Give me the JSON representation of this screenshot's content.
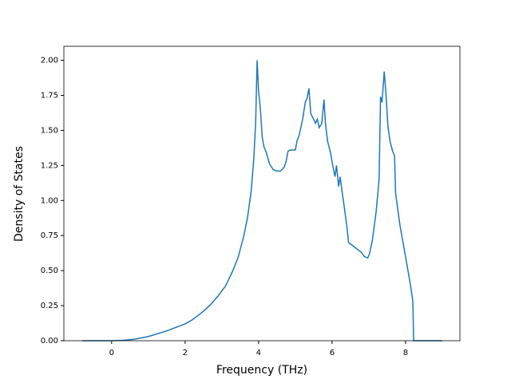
{
  "chart_data": {
    "type": "line",
    "x_label": "Frequency (THz)",
    "y_label": "Density of States",
    "xlim": [
      -1.3,
      9.48
    ],
    "ylim": [
      0,
      2.1
    ],
    "xticks": [
      0,
      2,
      4,
      6,
      8
    ],
    "yticks": [
      {
        "value": 0,
        "label": "0.00"
      },
      {
        "value": 0.25,
        "label": "0.25"
      },
      {
        "value": 0.5,
        "label": "0.50"
      },
      {
        "value": 0.75,
        "label": "0.75"
      },
      {
        "value": 1,
        "label": "1.00"
      },
      {
        "value": 1.25,
        "label": "1.25"
      },
      {
        "value": 1.5,
        "label": "1.50"
      },
      {
        "value": 1.75,
        "label": "1.75"
      },
      {
        "value": 2,
        "label": "2.00"
      }
    ],
    "color": "#1f77b4",
    "x": [
      -0.8,
      0,
      0.3,
      0.6,
      1.0,
      1.5,
      1.8,
      2.0,
      2.2,
      2.5,
      2.7,
      2.9,
      3.1,
      3.3,
      3.45,
      3.6,
      3.7,
      3.8,
      3.87,
      3.92,
      3.96,
      4.0,
      4.05,
      4.1,
      4.15,
      4.2,
      4.3,
      4.4,
      4.5,
      4.6,
      4.7,
      4.75,
      4.8,
      4.85,
      5.0,
      5.05,
      5.1,
      5.2,
      5.27,
      5.32,
      5.37,
      5.42,
      5.5,
      5.55,
      5.6,
      5.65,
      5.72,
      5.78,
      5.82,
      5.88,
      5.95,
      6.02,
      6.08,
      6.12,
      6.18,
      6.22,
      6.28,
      6.35,
      6.4,
      6.45,
      6.6,
      6.8,
      6.88,
      6.97,
      7.02,
      7.1,
      7.2,
      7.28,
      7.32,
      7.36,
      7.42,
      7.47,
      7.52,
      7.58,
      7.65,
      7.7,
      7.73,
      7.85,
      8.0,
      8.1,
      8.15,
      8.2,
      8.22,
      9.0
    ],
    "values": [
      0,
      0,
      0.003,
      0.01,
      0.03,
      0.07,
      0.1,
      0.12,
      0.15,
      0.21,
      0.26,
      0.32,
      0.39,
      0.5,
      0.6,
      0.75,
      0.88,
      1.07,
      1.3,
      1.55,
      2.0,
      1.78,
      1.65,
      1.45,
      1.38,
      1.35,
      1.26,
      1.22,
      1.21,
      1.21,
      1.24,
      1.28,
      1.35,
      1.36,
      1.36,
      1.43,
      1.46,
      1.58,
      1.7,
      1.73,
      1.8,
      1.62,
      1.58,
      1.55,
      1.58,
      1.52,
      1.55,
      1.72,
      1.55,
      1.42,
      1.35,
      1.25,
      1.17,
      1.25,
      1.1,
      1.17,
      1.05,
      0.92,
      0.82,
      0.7,
      0.67,
      0.63,
      0.6,
      0.59,
      0.62,
      0.72,
      0.92,
      1.15,
      1.74,
      1.7,
      1.92,
      1.75,
      1.53,
      1.42,
      1.35,
      1.32,
      1.05,
      0.82,
      0.6,
      0.45,
      0.37,
      0.28,
      0,
      0
    ]
  }
}
